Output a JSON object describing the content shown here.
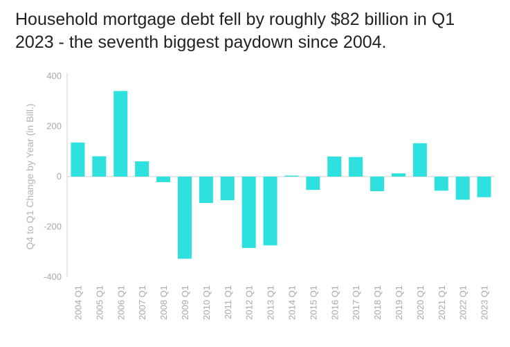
{
  "title_lines": [
    "Household mortgage debt fell by roughly $82 billion in Q1",
    "2023 - the seventh biggest paydown since 2004."
  ],
  "colors": {
    "bar": "#2ee0de",
    "axis": "#cfcfcf",
    "text": "#222222",
    "tick": "#a9a9a9"
  },
  "chart_data": {
    "type": "bar",
    "title": "Household mortgage debt fell by roughly $82 billion in Q1 2023 - the seventh biggest paydown since 2004.",
    "xlabel": "",
    "ylabel": "Q4 to Q1 Change by Year (in Bill.)",
    "ylim": [
      -400,
      400
    ],
    "yticks": [
      400,
      200,
      0,
      -200,
      -400
    ],
    "grid": false,
    "categories": [
      "2004 Q1",
      "2005 Q1",
      "2006 Q1",
      "2007 Q1",
      "2008 Q1",
      "2009 Q1",
      "2010 Q1",
      "2011 Q1",
      "2012 Q1",
      "2013 Q1",
      "2014 Q1",
      "2015 Q1",
      "2016 Q1",
      "2017 Q1",
      "2018 Q1",
      "2019 Q1",
      "2020 Q1",
      "2021 Q1",
      "2022 Q1",
      "2023 Q1"
    ],
    "values": [
      136,
      81,
      341,
      61,
      -22,
      -327,
      -105,
      -94,
      -284,
      -274,
      4,
      -53,
      80,
      78,
      -58,
      13,
      133,
      -56,
      -92,
      -82
    ]
  }
}
